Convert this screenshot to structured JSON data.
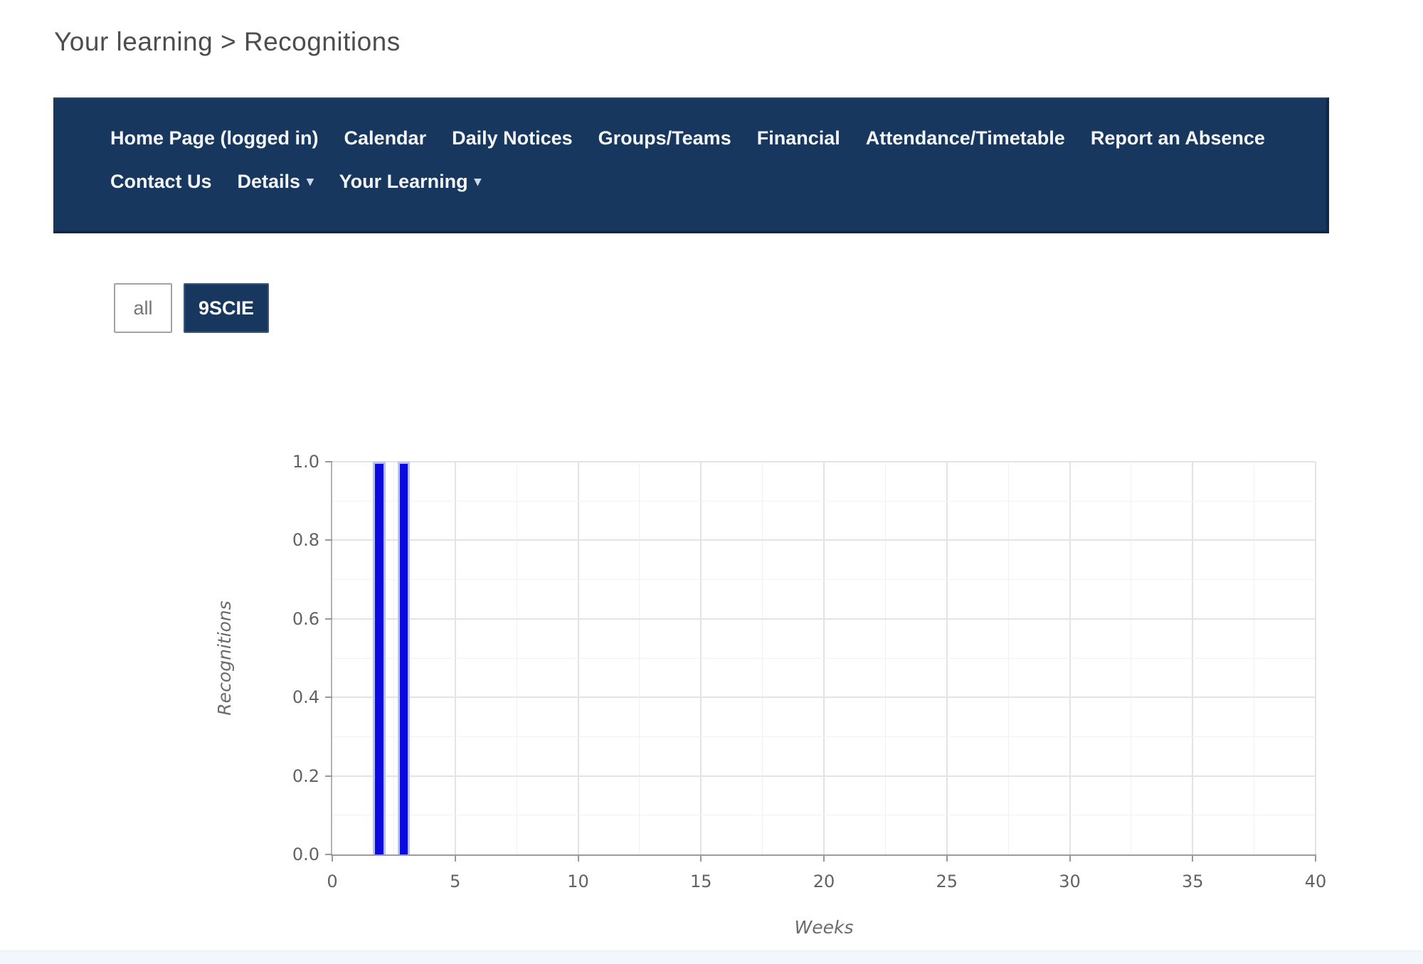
{
  "breadcrumb": {
    "text": "Your learning > Recognitions"
  },
  "navbar": {
    "background": "#17375e",
    "text_color": "#ffffff",
    "row1": [
      {
        "label": "Home Page (logged in)",
        "dropdown": false
      },
      {
        "label": "Calendar",
        "dropdown": false
      },
      {
        "label": "Daily Notices",
        "dropdown": false
      },
      {
        "label": "Groups/Teams",
        "dropdown": false
      },
      {
        "label": "Financial",
        "dropdown": false
      },
      {
        "label": "Attendance/Timetable",
        "dropdown": false
      },
      {
        "label": "Report an Absence",
        "dropdown": false
      }
    ],
    "row2": [
      {
        "label": "Contact Us",
        "dropdown": false
      },
      {
        "label": "Details",
        "dropdown": true
      },
      {
        "label": "Your Learning",
        "dropdown": true
      }
    ],
    "dropdown_caret": "▾"
  },
  "filters": {
    "all": {
      "label": "all",
      "selected": false
    },
    "subject": {
      "label": "9SCIE",
      "selected": true
    },
    "selected_background": "#17375e"
  },
  "chart_data": {
    "type": "bar",
    "title": "",
    "xlabel": "Weeks",
    "ylabel": "Recognitions",
    "xlim": [
      0,
      40
    ],
    "ylim": [
      0.0,
      1.0
    ],
    "xticks": [
      0,
      5,
      10,
      15,
      20,
      25,
      30,
      35,
      40
    ],
    "yticks": [
      0.0,
      0.2,
      0.4,
      0.6,
      0.8,
      1.0
    ],
    "x_minor_step": 2.5,
    "y_minor_step": 0.1,
    "grid": true,
    "legend": "none",
    "categories_unit": "week",
    "bars": [
      {
        "week": 2,
        "value": 1.0
      },
      {
        "week": 3,
        "value": 1.0
      }
    ],
    "bar_width_weeks": 0.5,
    "bar_color": "#0b0be0",
    "bar_edge_color": "#b9c0f5"
  }
}
